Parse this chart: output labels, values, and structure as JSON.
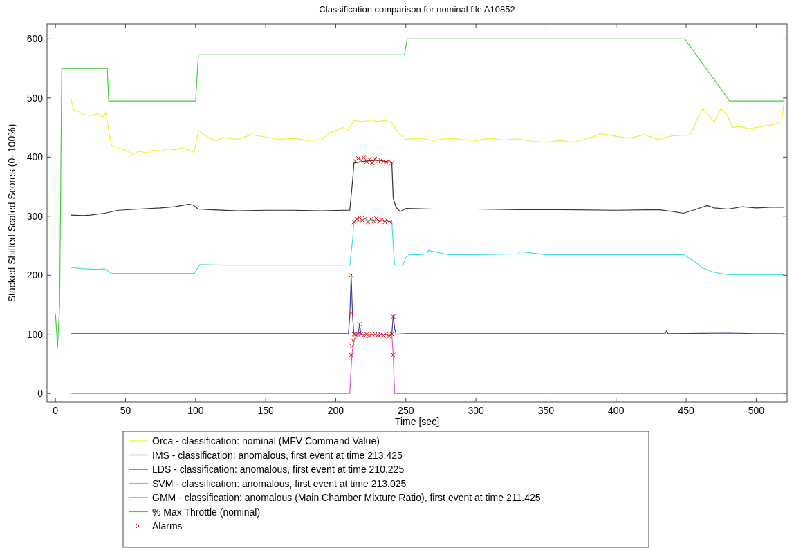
{
  "chart_data": {
    "type": "line",
    "title": "Classification comparison for nominal file A10852",
    "xlabel": "Time [sec]",
    "ylabel": "Stacked Shifted Scaled Scores (0- 100%)",
    "xlim": [
      -6,
      522
    ],
    "ylim": [
      -15,
      625
    ],
    "xticks": [
      0,
      50,
      100,
      150,
      200,
      250,
      300,
      350,
      400,
      450,
      500
    ],
    "yticks": [
      0,
      100,
      200,
      300,
      400,
      500,
      600
    ],
    "legend": "bottom",
    "grid": false,
    "series": [
      {
        "name": "Orca - classification: nominal (MFV Command Value)",
        "color": "#f0f030",
        "x": [
          11,
          13,
          16,
          20,
          25,
          30,
          34,
          36,
          38,
          40,
          45,
          50,
          55,
          60,
          65,
          70,
          75,
          80,
          85,
          90,
          95,
          99,
          102,
          106,
          110,
          115,
          120,
          130,
          140,
          150,
          160,
          170,
          180,
          190,
          195,
          200,
          205,
          209,
          213,
          220,
          225,
          230,
          235,
          240,
          245,
          250,
          260,
          270,
          280,
          290,
          300,
          310,
          320,
          330,
          340,
          350,
          360,
          370,
          380,
          390,
          400,
          410,
          420,
          430,
          440,
          448,
          453,
          458,
          462,
          466,
          470,
          475,
          480,
          483,
          487,
          495,
          505,
          512,
          518,
          520
        ],
        "values": [
          500,
          480,
          478,
          472,
          470,
          474,
          468,
          475,
          445,
          420,
          415,
          412,
          405,
          410,
          407,
          412,
          410,
          414,
          412,
          416,
          412,
          408,
          445,
          438,
          432,
          428,
          433,
          430,
          438,
          434,
          430,
          432,
          428,
          430,
          440,
          445,
          450,
          445,
          462,
          460,
          463,
          460,
          462,
          458,
          440,
          430,
          432,
          428,
          432,
          430,
          428,
          432,
          429,
          431,
          427,
          425,
          428,
          425,
          432,
          440,
          435,
          432,
          438,
          430,
          436,
          437,
          437,
          465,
          482,
          470,
          460,
          482,
          468,
          450,
          452,
          448,
          452,
          455,
          460,
          495
        ]
      },
      {
        "name": "IMS - classification: anomalous, first event at time 213.425",
        "color": "#333333",
        "x": [
          11,
          20,
          25,
          35,
          45,
          60,
          75,
          85,
          95,
          98,
          102,
          110,
          130,
          150,
          170,
          190,
          205,
          210,
          212,
          213,
          220,
          230,
          240,
          241,
          243,
          246,
          250,
          270,
          300,
          330,
          360,
          400,
          430,
          440,
          448,
          455,
          465,
          470,
          480,
          490,
          500,
          510,
          520
        ],
        "values": [
          302,
          301,
          302,
          305,
          310,
          312,
          314,
          316,
          320,
          319,
          312,
          311,
          309,
          310,
          310,
          309,
          310,
          310,
          360,
          390,
          393,
          395,
          391,
          330,
          315,
          308,
          313,
          312,
          312,
          311,
          311,
          310,
          311,
          308,
          305,
          310,
          318,
          314,
          312,
          316,
          314,
          315,
          315
        ]
      },
      {
        "name": "LDS - classification: anomalous, first event at time 210.225",
        "color": "#3c3ca8",
        "x": [
          11,
          50,
          100,
          150,
          200,
          209,
          210,
          211,
          212,
          213,
          215,
          216,
          217,
          218,
          239,
          240,
          241,
          242,
          243,
          250,
          300,
          350,
          400,
          435,
          436,
          437,
          480,
          500,
          520
        ],
        "values": [
          101,
          101,
          101,
          101,
          101,
          101,
          130,
          200,
          130,
          100,
          100,
          100,
          117,
          100,
          100,
          100,
          132,
          110,
          100,
          101,
          101,
          101,
          101,
          101,
          106,
          101,
          102,
          101,
          101
        ]
      },
      {
        "name": "SVM - classification: anomalous, first event at time 213.025",
        "color": "#40e0e0",
        "x": [
          11,
          20,
          30,
          35,
          40,
          60,
          80,
          99,
          103,
          120,
          150,
          180,
          200,
          210,
          212,
          213,
          220,
          230,
          240,
          241,
          242,
          248,
          250,
          253,
          260,
          265,
          266,
          280,
          300,
          330,
          331,
          350,
          400,
          440,
          448,
          455,
          462,
          470,
          480,
          500,
          520
        ],
        "values": [
          213,
          211,
          210,
          211,
          203,
          203,
          203,
          203,
          218,
          217,
          217,
          217,
          217,
          217,
          260,
          290,
          293,
          292,
          291,
          250,
          217,
          217,
          230,
          235,
          235,
          236,
          242,
          235,
          235,
          236,
          240,
          235,
          235,
          235,
          235,
          225,
          212,
          205,
          201,
          201,
          201
        ]
      },
      {
        "name": "GMM - classification: anomalous (Main Chamber Mixture Ratio), first event at time 211.425",
        "color": "#e050d8",
        "x": [
          11,
          50,
          100,
          150,
          200,
          210,
          211.5,
          213,
          215,
          220,
          230,
          240,
          241,
          242,
          250,
          300,
          350,
          400,
          450,
          500,
          520
        ],
        "values": [
          0,
          0,
          0,
          0,
          0,
          0,
          65,
          90,
          100,
          100,
          100,
          100,
          65,
          0,
          0,
          0,
          0,
          0,
          0,
          0,
          0
        ]
      },
      {
        "name": "% Max Throttle (nominal)",
        "color": "#40d040",
        "x": [
          0,
          1.5,
          3,
          4.5,
          37,
          38,
          100,
          102,
          249,
          251,
          449,
          481,
          520
        ],
        "values": [
          135,
          78,
          150,
          550,
          550,
          495,
          495,
          573,
          573,
          600,
          600,
          495,
          495
        ]
      },
      {
        "name": "Alarms",
        "type": "scatter",
        "marker": "cross",
        "color": "#e01010",
        "x": [
          211,
          211,
          211,
          211.5,
          212,
          213,
          214,
          216,
          217,
          218,
          220,
          222,
          224,
          226,
          228,
          230,
          232,
          234,
          236,
          238,
          240,
          241,
          241,
          213,
          215,
          217,
          219,
          221,
          223,
          225,
          227,
          229,
          231,
          233,
          235,
          237,
          239,
          214,
          216,
          218,
          220,
          222,
          224,
          226,
          228,
          230,
          232,
          234,
          236,
          238,
          240
        ],
        "values": [
          200,
          135,
          65,
          80,
          90,
          100,
          100,
          100,
          117,
          100,
          98,
          100,
          97,
          100,
          100,
          99,
          100,
          98,
          100,
          97,
          100,
          130,
          65,
          290,
          295,
          297,
          293,
          296,
          290,
          295,
          292,
          296,
          291,
          294,
          290,
          292,
          290,
          393,
          398,
          395,
          399,
          392,
          396,
          390,
          397,
          393,
          395,
          392,
          391,
          393,
          390
        ]
      }
    ]
  }
}
